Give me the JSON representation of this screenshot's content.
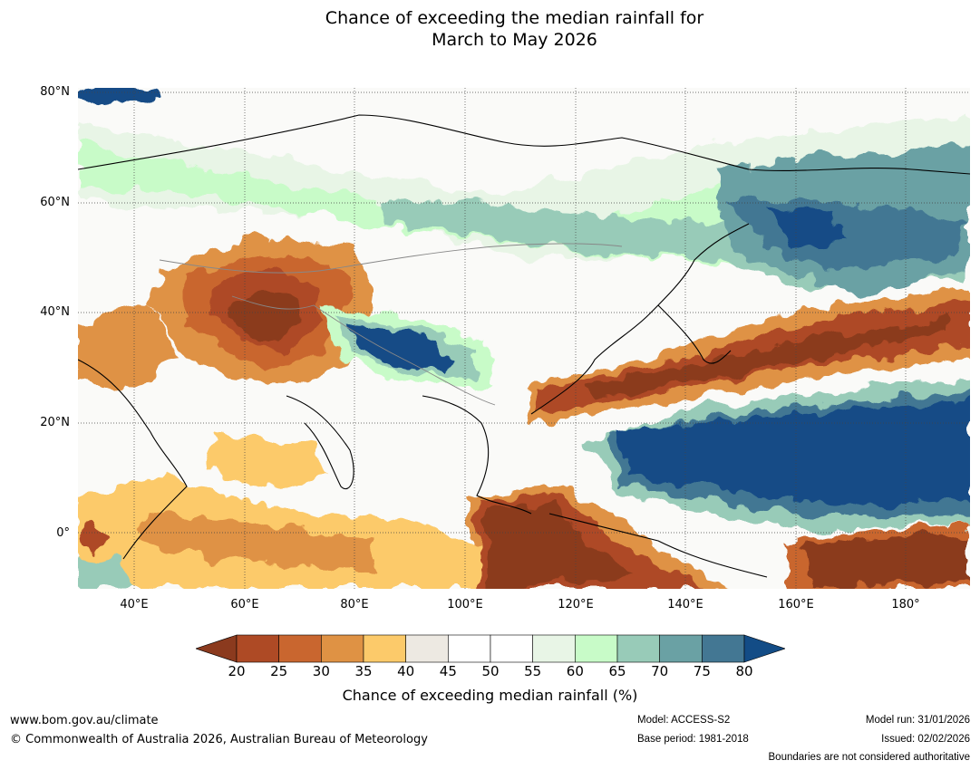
{
  "title": {
    "line1": "Chance of exceeding the median rainfall for",
    "line2": "March to May 2026"
  },
  "map": {
    "lat_labels": [
      "80°N",
      "60°N",
      "40°N",
      "20°N",
      "0°"
    ],
    "lon_labels": [
      "40°E",
      "60°E",
      "80°E",
      "100°E",
      "120°E",
      "140°E",
      "160°E",
      "180°"
    ]
  },
  "colorbar": {
    "ticks": [
      "20",
      "25",
      "30",
      "35",
      "40",
      "45",
      "50",
      "55",
      "60",
      "65",
      "70",
      "75",
      "80"
    ],
    "colors": [
      "#8b3a1e",
      "#ae4a25",
      "#c9662f",
      "#df9244",
      "#fcca6a",
      "#ede9e2",
      "#ffffff",
      "#ffffff",
      "#e8f5e6",
      "#c8fbc8",
      "#98cbb8",
      "#6aa1a4",
      "#437793",
      "#134c86"
    ],
    "label": "Chance of exceeding median rainfall (%)"
  },
  "footer": {
    "website": "www.bom.gov.au/climate",
    "copyright": "© Commonwealth of Australia 2026, Australian Bureau of Meteorology",
    "model": "Model: ACCESS-S2",
    "base_period": "Base period: 1981-2018",
    "model_run": "Model run: 31/01/2026",
    "issued": "Issued: 02/02/2026",
    "disclaimer": "Boundaries are not considered authoritative"
  }
}
